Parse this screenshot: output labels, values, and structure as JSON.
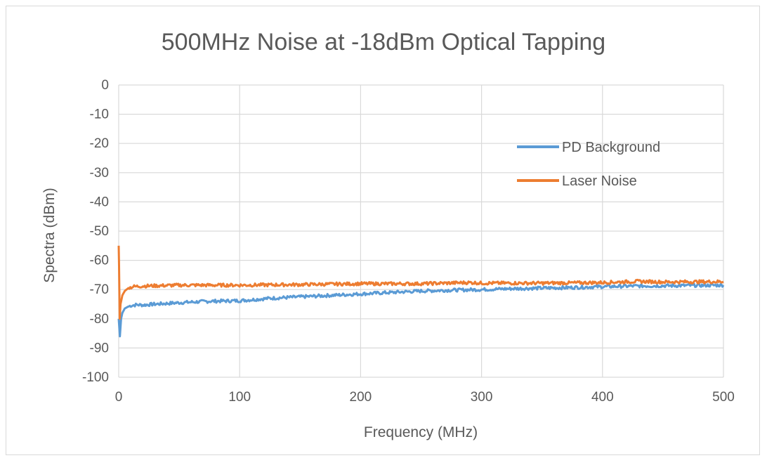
{
  "chart_data": {
    "type": "line",
    "title": "500MHz Noise at -18dBm Optical Tapping",
    "xlabel": "Frequency (MHz)",
    "ylabel": "Spectra (dBm)",
    "xlim": [
      0,
      500
    ],
    "ylim": [
      -100,
      0
    ],
    "x_ticks": [
      "0",
      "100",
      "200",
      "300",
      "400",
      "500"
    ],
    "y_ticks": [
      "0",
      "-10",
      "-20",
      "-30",
      "-40",
      "-50",
      "-60",
      "-70",
      "-80",
      "-90",
      "-100"
    ],
    "grid": true,
    "legend_position": "top-right",
    "series": [
      {
        "name": "PD Background",
        "color": "#5b9bd5",
        "x": [
          0,
          1,
          2,
          3,
          5,
          7,
          10,
          15,
          20,
          30,
          50,
          75,
          100,
          125,
          150,
          175,
          200,
          225,
          250,
          275,
          300,
          325,
          350,
          375,
          400,
          425,
          450,
          475,
          500
        ],
        "y": [
          -80,
          -86,
          -80,
          -78,
          -76.5,
          -76,
          -75.5,
          -75.2,
          -75.3,
          -75,
          -74.5,
          -74,
          -73.8,
          -73,
          -72.5,
          -72,
          -71.5,
          -71,
          -70.5,
          -70.2,
          -70,
          -69.7,
          -69.5,
          -69.3,
          -69,
          -68.8,
          -68.7,
          -68.6,
          -68.5
        ]
      },
      {
        "name": "Laser Noise",
        "color": "#ed7d31",
        "x": [
          0,
          0.3,
          0.8,
          1.5,
          3,
          5,
          8,
          12,
          20,
          50,
          100,
          150,
          200,
          250,
          290,
          300,
          350,
          400,
          430,
          450,
          500
        ],
        "y": [
          -55,
          -62,
          -80,
          -75,
          -72,
          -70.5,
          -69.5,
          -69,
          -68.8,
          -68.5,
          -68.5,
          -68.3,
          -68,
          -68,
          -67.6,
          -67.8,
          -67.8,
          -67.6,
          -67.2,
          -67.4,
          -67.3
        ]
      }
    ]
  }
}
